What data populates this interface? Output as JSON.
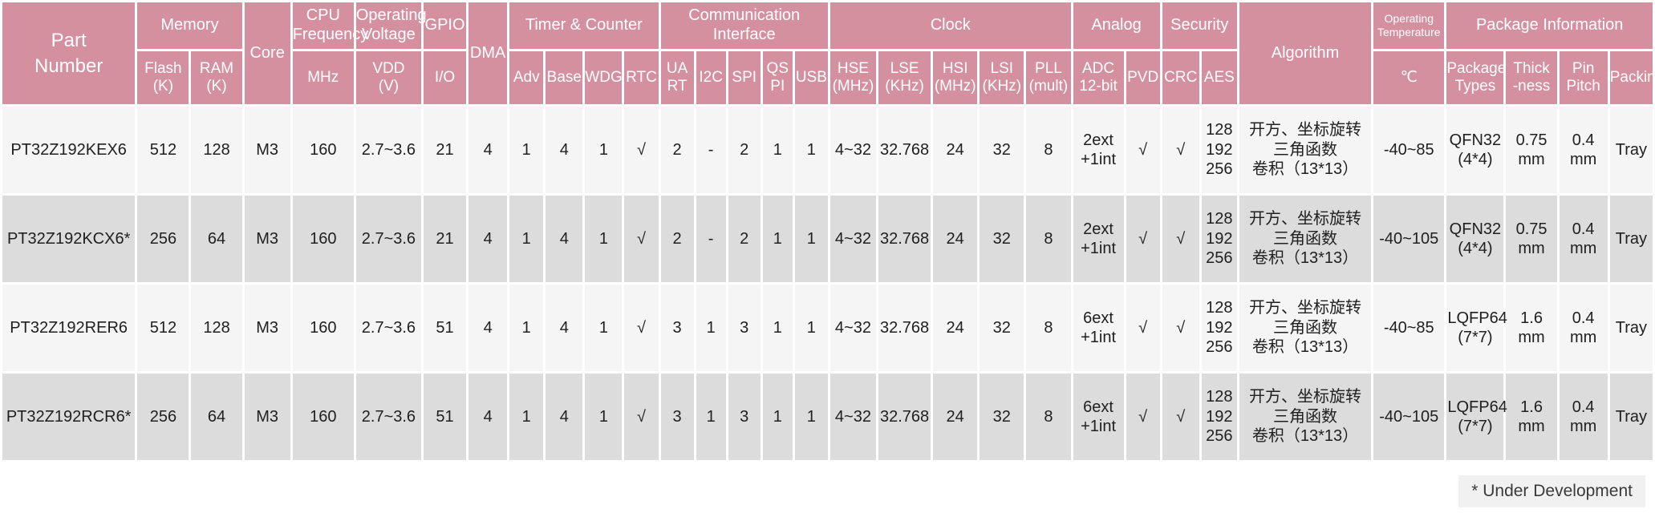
{
  "header": {
    "groups": {
      "part_number": "Part\nNumber",
      "memory": "Memory",
      "core": "Core",
      "cpu_frequency": "CPU\nFrequency",
      "operating_voltage": "Operating\nVoltage",
      "gpio": "GPIO",
      "dma": "DMA",
      "timer_counter": "Timer & Counter",
      "comm_interface": "Communication\nInterface",
      "clock": "Clock",
      "analog": "Analog",
      "security": "Security",
      "algorithm": "Algorithm",
      "operating_temperature": "Operating\nTemperature",
      "package_information": "Package Information"
    },
    "subheaders": [
      "Flash\n(K)",
      "RAM\n(K)",
      "MHz",
      "VDD\n(V)",
      "I/O",
      "Adv",
      "Base",
      "WDG",
      "RTC",
      "UA\nRT",
      "I2C",
      "SPI",
      "QS\nPI",
      "USB",
      "HSE\n(MHz)",
      "LSE\n(KHz)",
      "HSI\n(MHz)",
      "LSI\n(KHz)",
      "PLL\n(mult)",
      "ADC\n12-bit",
      "PVD",
      "CRC",
      "AES",
      "℃",
      "Package\nTypes",
      "Thick\n-ness",
      "Pin\nPitch",
      "Packing"
    ]
  },
  "rows": [
    {
      "cells": [
        "PT32Z192KEX6",
        "512",
        "128",
        "M3",
        "160",
        "2.7~3.6",
        "21",
        "4",
        "1",
        "4",
        "1",
        "√",
        "2",
        "-",
        "2",
        "1",
        "1",
        "4~32",
        "32.768",
        "24",
        "32",
        "8",
        "2ext\n+1int",
        "√",
        "√",
        "128\n192\n256",
        "开方、坐标旋转\n三角函数\n卷积（13*13）",
        "-40~85",
        "QFN32\n(4*4)",
        "0.75\nmm",
        "0.4\nmm",
        "Tray"
      ]
    },
    {
      "cells": [
        "PT32Z192KCX6*",
        "256",
        "64",
        "M3",
        "160",
        "2.7~3.6",
        "21",
        "4",
        "1",
        "4",
        "1",
        "√",
        "2",
        "-",
        "2",
        "1",
        "1",
        "4~32",
        "32.768",
        "24",
        "32",
        "8",
        "2ext\n+1int",
        "√",
        "√",
        "128\n192\n256",
        "开方、坐标旋转\n三角函数\n卷积（13*13）",
        "-40~105",
        "QFN32\n(4*4)",
        "0.75\nmm",
        "0.4\nmm",
        "Tray"
      ]
    },
    {
      "cells": [
        "PT32Z192RER6",
        "512",
        "128",
        "M3",
        "160",
        "2.7~3.6",
        "51",
        "4",
        "1",
        "4",
        "1",
        "√",
        "3",
        "1",
        "3",
        "1",
        "1",
        "4~32",
        "32.768",
        "24",
        "32",
        "8",
        "6ext\n+1int",
        "√",
        "√",
        "128\n192\n256",
        "开方、坐标旋转\n三角函数\n卷积（13*13）",
        "-40~85",
        "LQFP64\n(7*7)",
        "1.6\nmm",
        "0.4\nmm",
        "Tray"
      ]
    },
    {
      "cells": [
        "PT32Z192RCR6*",
        "256",
        "64",
        "M3",
        "160",
        "2.7~3.6",
        "51",
        "4",
        "1",
        "4",
        "1",
        "√",
        "3",
        "1",
        "3",
        "1",
        "1",
        "4~32",
        "32.768",
        "24",
        "32",
        "8",
        "6ext\n+1int",
        "√",
        "√",
        "128\n192\n256",
        "开方、坐标旋转\n三角函数\n卷积（13*13）",
        "-40~105",
        "LQFP64\n(7*7)",
        "1.6\nmm",
        "0.4\nmm",
        "Tray"
      ]
    }
  ],
  "footnote": "* Under Development",
  "colors": {
    "header_bg": "#d5909f",
    "row_light": "#f5f5f5",
    "row_dark": "#dcdcdc",
    "footnote_bg": "#f1f1f1"
  }
}
